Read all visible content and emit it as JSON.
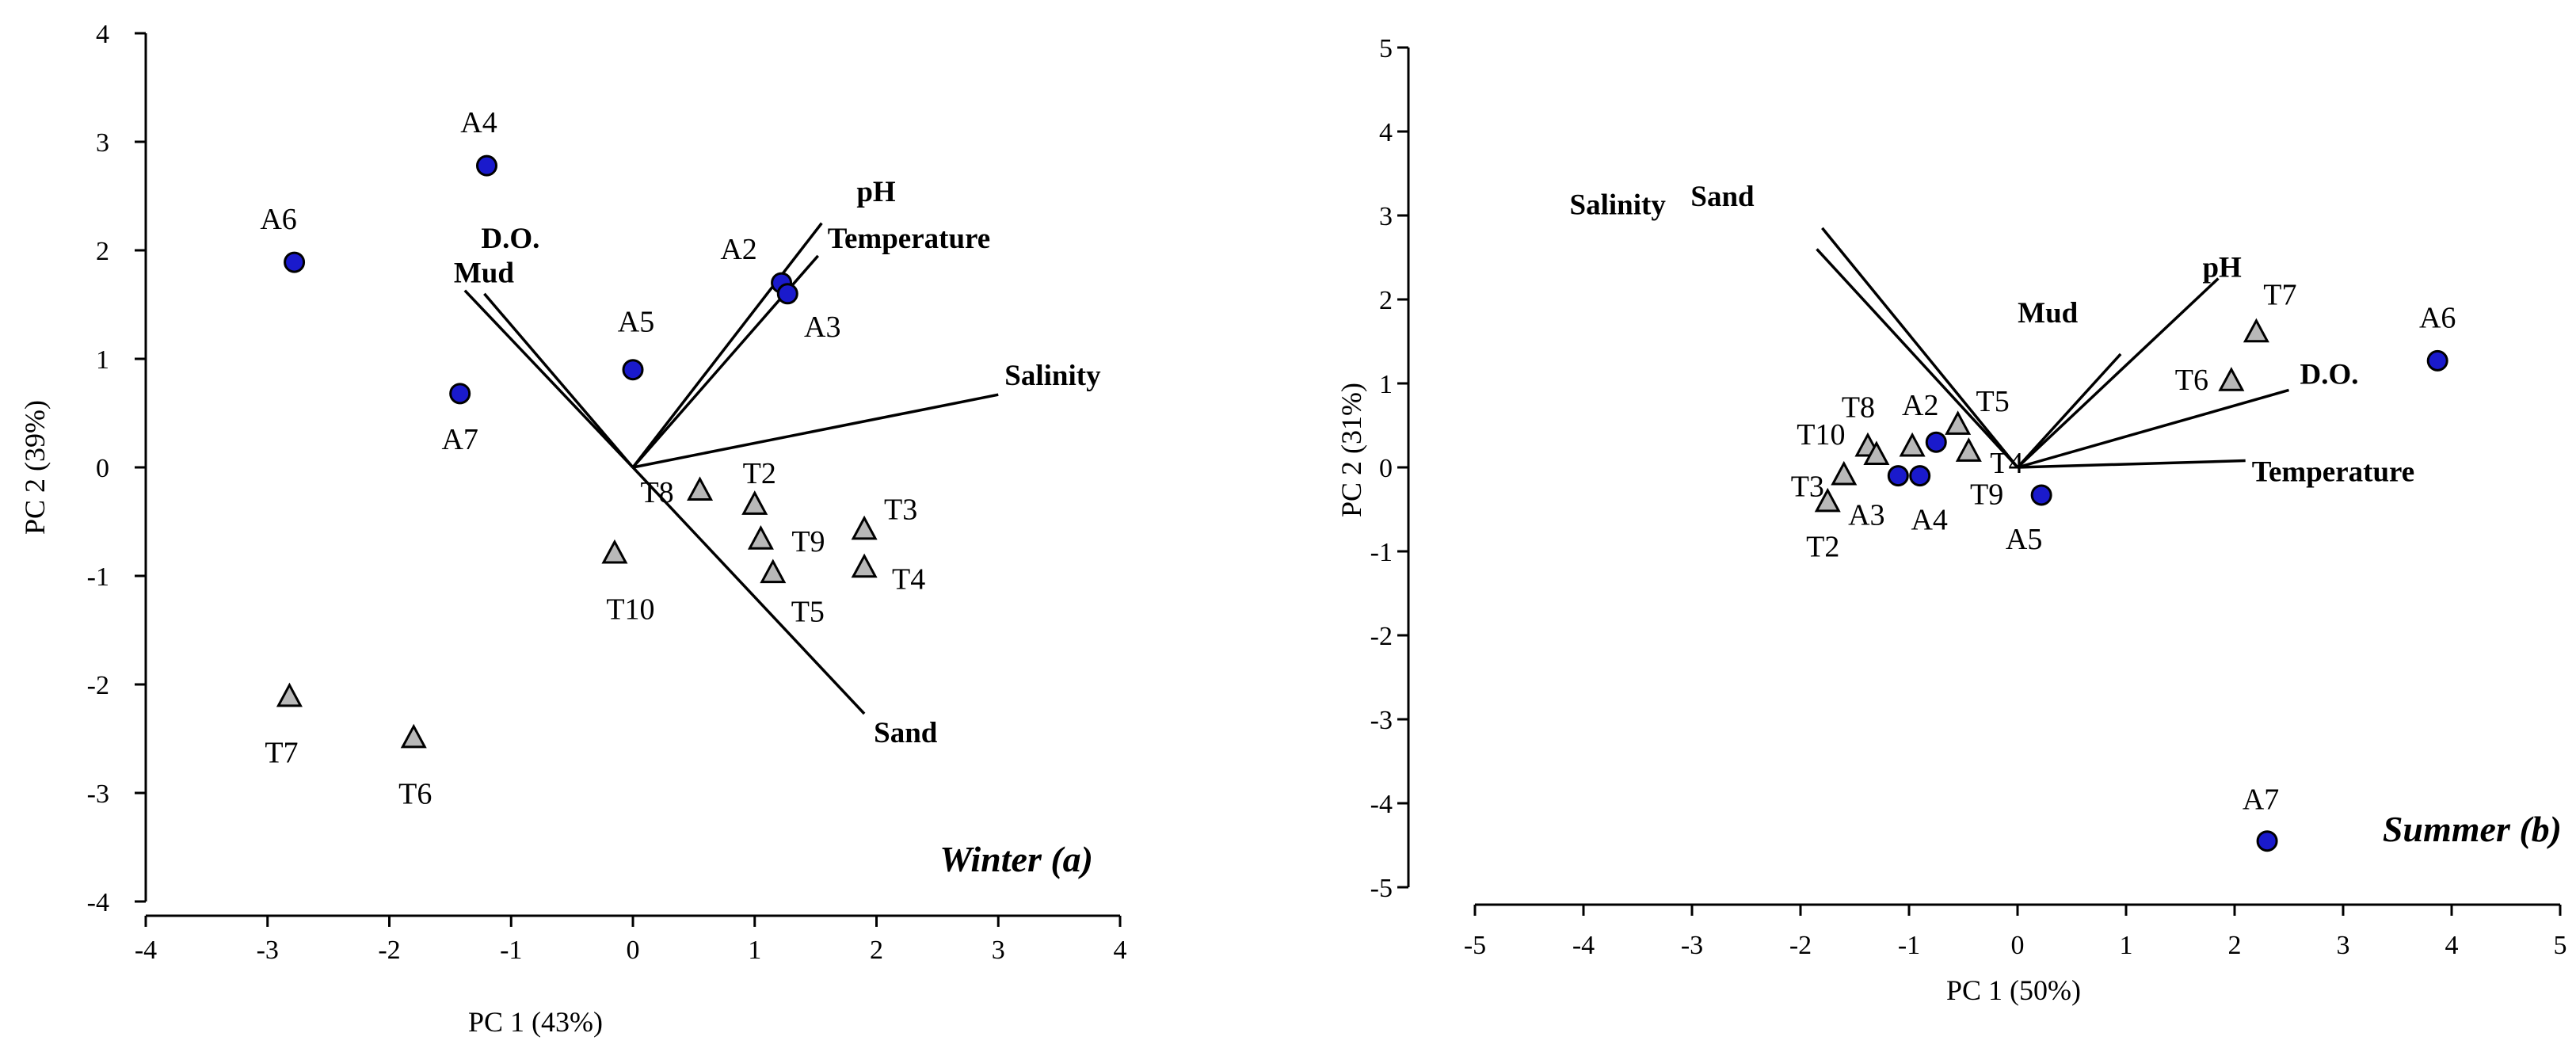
{
  "chart_data": [
    {
      "type": "scatter",
      "title": "Winter (a)",
      "xlabel": "PC 1 (43%)",
      "ylabel": "PC 2 (39%)",
      "xlim": [
        -4,
        4
      ],
      "ylim": [
        -4,
        4
      ],
      "x_ticks": [
        -4,
        -3,
        -2,
        -1,
        0,
        1,
        2,
        3,
        4
      ],
      "y_ticks": [
        -4,
        -3,
        -2,
        -1,
        0,
        1,
        2,
        3,
        4
      ],
      "grid": false,
      "points": [
        {
          "label": "A4",
          "marker": "circle",
          "x": -1.2,
          "y": 2.78
        },
        {
          "label": "A6",
          "marker": "circle",
          "x": -2.78,
          "y": 1.89
        },
        {
          "label": "A2",
          "marker": "circle",
          "x": 1.22,
          "y": 1.7
        },
        {
          "label": "A3",
          "marker": "circle",
          "x": 1.27,
          "y": 1.6
        },
        {
          "label": "A5",
          "marker": "circle",
          "x": 0.0,
          "y": 0.9
        },
        {
          "label": "A7",
          "marker": "circle",
          "x": -1.42,
          "y": 0.68
        },
        {
          "label": "T8",
          "marker": "triangle",
          "x": 0.55,
          "y": -0.22
        },
        {
          "label": "T2",
          "marker": "triangle",
          "x": 1.0,
          "y": -0.35
        },
        {
          "label": "T9",
          "marker": "triangle",
          "x": 1.05,
          "y": -0.67
        },
        {
          "label": "T5",
          "marker": "triangle",
          "x": 1.15,
          "y": -0.98
        },
        {
          "label": "T3",
          "marker": "triangle",
          "x": 1.9,
          "y": -0.58
        },
        {
          "label": "T4",
          "marker": "triangle",
          "x": 1.9,
          "y": -0.93
        },
        {
          "label": "T10",
          "marker": "triangle",
          "x": -0.15,
          "y": -0.8
        },
        {
          "label": "T7",
          "marker": "triangle",
          "x": -2.82,
          "y": -2.12
        },
        {
          "label": "T6",
          "marker": "triangle",
          "x": -1.8,
          "y": -2.5
        }
      ],
      "vectors": [
        {
          "label": "pH",
          "x": 1.55,
          "y": 2.25
        },
        {
          "label": "Temperature",
          "x": 1.52,
          "y": 1.95
        },
        {
          "label": "Salinity",
          "x": 3.0,
          "y": 0.67
        },
        {
          "label": "Mud",
          "x": -1.38,
          "y": 1.63
        },
        {
          "label": "D.O.",
          "x": -1.22,
          "y": 1.6
        },
        {
          "label": "Sand",
          "x": 1.9,
          "y": -2.27
        }
      ]
    },
    {
      "type": "scatter",
      "title": "Summer (b)",
      "xlabel": "PC 1 (50%)",
      "ylabel": "PC 2 (31%)",
      "xlim": [
        -5,
        5
      ],
      "ylim": [
        -5,
        5
      ],
      "x_ticks": [
        -5,
        -4,
        -3,
        -2,
        -1,
        0,
        1,
        2,
        3,
        4,
        5
      ],
      "y_ticks": [
        -5,
        -4,
        -3,
        -2,
        -1,
        0,
        1,
        2,
        3,
        4,
        5
      ],
      "grid": false,
      "points": [
        {
          "label": "A6",
          "marker": "circle",
          "x": 3.87,
          "y": 1.27
        },
        {
          "label": "A7",
          "marker": "circle",
          "x": 2.3,
          "y": -4.45
        },
        {
          "label": "A5",
          "marker": "circle",
          "x": 0.22,
          "y": -0.33
        },
        {
          "label": "A2",
          "marker": "circle",
          "x": -0.75,
          "y": 0.3
        },
        {
          "label": "A3",
          "marker": "circle",
          "x": -1.1,
          "y": -0.1
        },
        {
          "label": "A4",
          "marker": "circle",
          "x": -0.9,
          "y": -0.1
        },
        {
          "label": "T7",
          "marker": "triangle",
          "x": 2.2,
          "y": 1.6
        },
        {
          "label": "T6",
          "marker": "triangle",
          "x": 1.97,
          "y": 1.02
        },
        {
          "label": "T5",
          "marker": "triangle",
          "x": -0.55,
          "y": 0.5
        },
        {
          "label": "T4",
          "marker": "triangle",
          "x": -0.45,
          "y": 0.18
        },
        {
          "label": "T9",
          "marker": "triangle",
          "x": -0.97,
          "y": 0.24
        },
        {
          "label": "T8",
          "marker": "triangle",
          "x": -1.38,
          "y": 0.24
        },
        {
          "label": "T10",
          "marker": "triangle",
          "x": -1.3,
          "y": 0.14
        },
        {
          "label": "T3",
          "marker": "triangle",
          "x": -1.6,
          "y": -0.1
        },
        {
          "label": "T2",
          "marker": "triangle",
          "x": -1.75,
          "y": -0.42
        }
      ],
      "vectors": [
        {
          "label": "pH",
          "x": 1.85,
          "y": 2.25
        },
        {
          "label": "D.O.",
          "x": 2.5,
          "y": 0.92
        },
        {
          "label": "Temperature",
          "x": 2.1,
          "y": 0.08
        },
        {
          "label": "Mud",
          "x": 0.95,
          "y": 1.35
        },
        {
          "label": "Salinity",
          "x": -1.85,
          "y": 2.6
        },
        {
          "label": "Sand",
          "x": -1.8,
          "y": 2.85
        }
      ]
    }
  ]
}
